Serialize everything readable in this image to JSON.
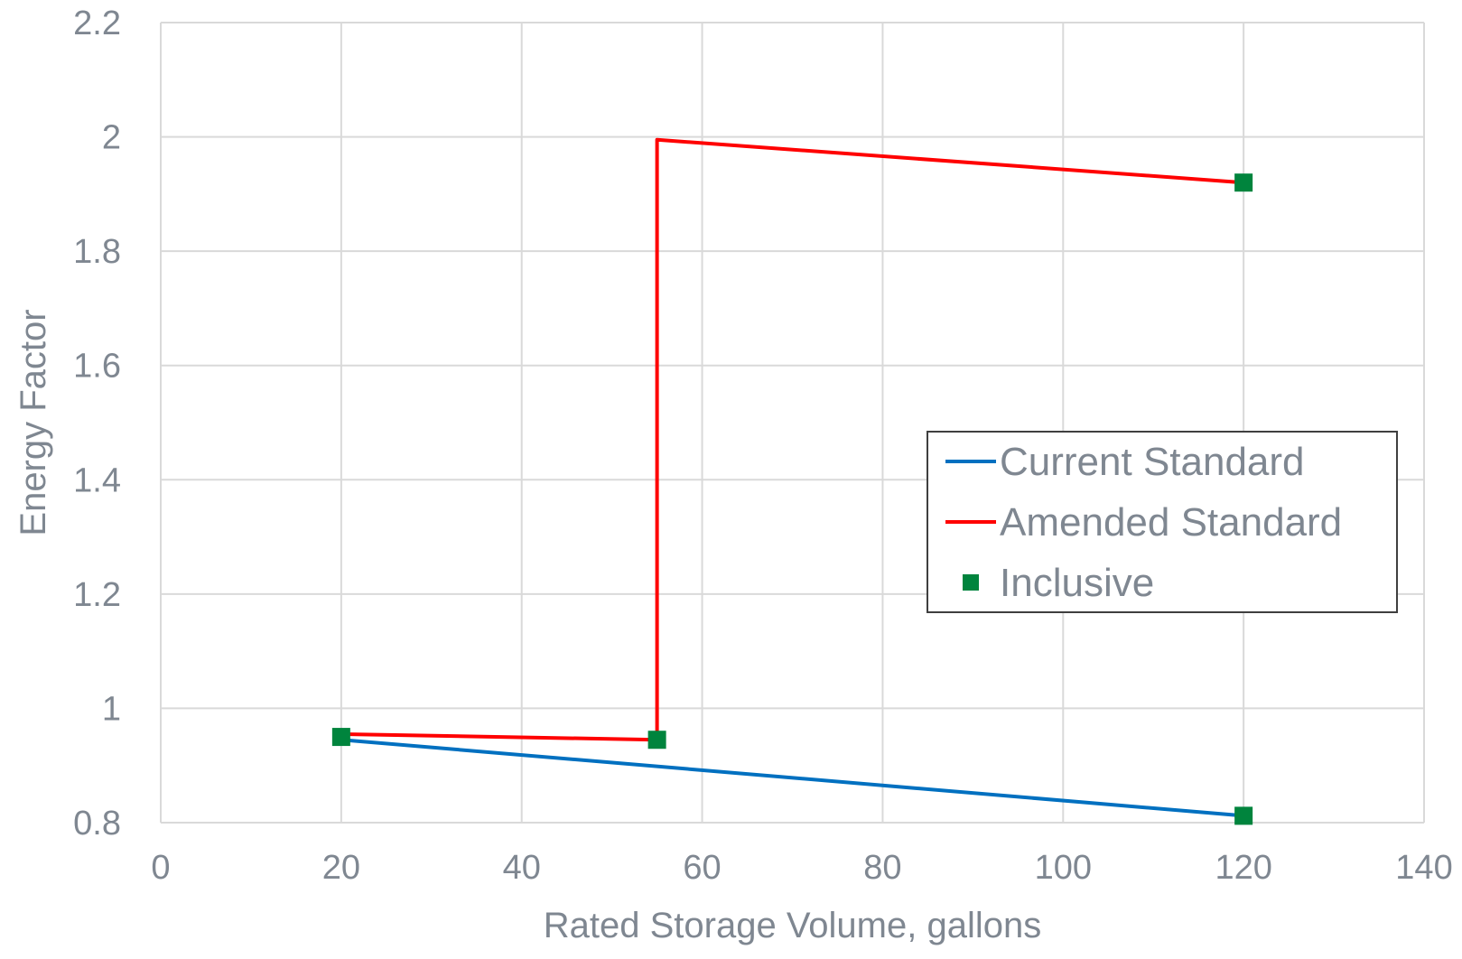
{
  "chart_data": {
    "type": "line",
    "title": "",
    "xlabel": "Rated Storage Volume, gallons",
    "ylabel": "Energy Factor",
    "xlim": [
      0,
      140
    ],
    "ylim": [
      0.8,
      2.2
    ],
    "x_ticks": [
      0,
      20,
      40,
      60,
      80,
      100,
      120,
      140
    ],
    "y_ticks": [
      0.8,
      1.0,
      1.2,
      1.4,
      1.6,
      1.8,
      2.0,
      2.2
    ],
    "x_tick_labels": [
      "0",
      "20",
      "40",
      "60",
      "80",
      "100",
      "120",
      "140"
    ],
    "y_tick_labels": [
      "0.8",
      "1",
      "1.2",
      "1.4",
      "1.6",
      "1.8",
      "2",
      "2.2"
    ],
    "grid": true,
    "legend_position": "right-center",
    "series": [
      {
        "name": "Current Standard",
        "kind": "line",
        "color": "#0070C0",
        "points": [
          [
            20,
            0.945
          ],
          [
            120,
            0.812
          ]
        ]
      },
      {
        "name": "Amended Standard",
        "kind": "line",
        "color": "#FF0000",
        "points": [
          [
            20,
            0.955
          ],
          [
            55,
            0.945
          ],
          [
            55,
            1.995
          ],
          [
            120,
            1.92
          ]
        ]
      },
      {
        "name": "Inclusive",
        "kind": "marker",
        "color": "#00843D",
        "points": [
          [
            20,
            0.95
          ],
          [
            55,
            0.945
          ],
          [
            120,
            1.92
          ],
          [
            120,
            0.812
          ]
        ]
      }
    ]
  }
}
